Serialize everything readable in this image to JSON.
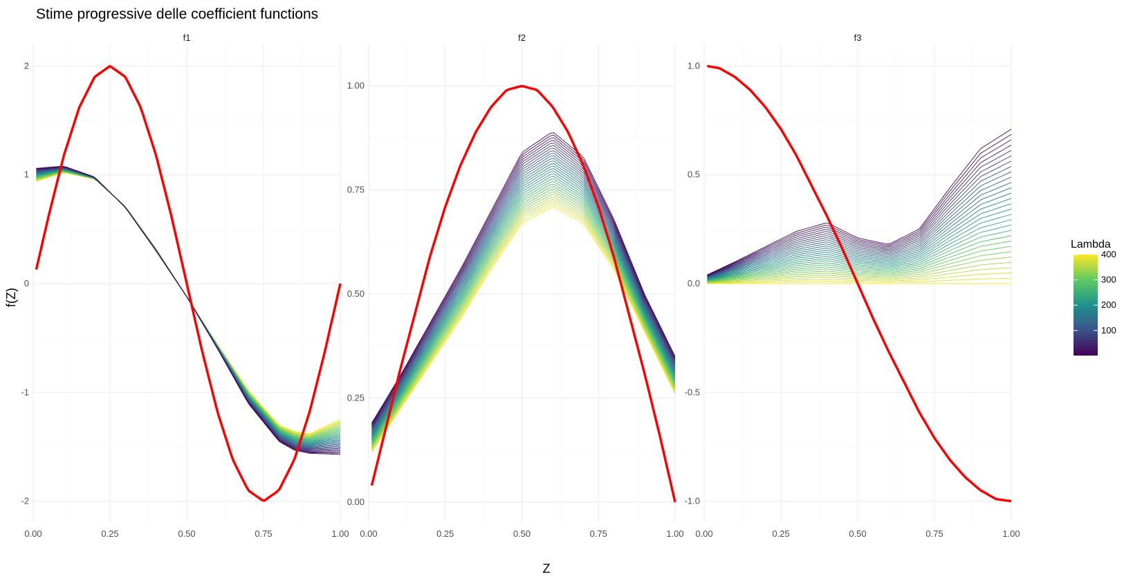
{
  "chart_data": {
    "type": "line",
    "title": "Stime progressive delle coefficient functions",
    "xlabel": "Z",
    "ylabel": "f(Z)",
    "legend": {
      "title": "Lambda",
      "ticks": [
        100,
        200,
        300,
        400
      ],
      "range": [
        1,
        400
      ],
      "position": "right",
      "palette": "viridis"
    },
    "grid": true,
    "true_curve_color": "#ff0000",
    "panels": [
      {
        "name": "f1",
        "xlim": [
          0,
          1
        ],
        "ylim": [
          -2.2,
          2.2
        ],
        "xticks": [
          "0.00",
          "0.25",
          "0.50",
          "0.75",
          "1.00"
        ],
        "yticks": [
          {
            "v": -2,
            "l": "-2"
          },
          {
            "v": -1,
            "l": "-1"
          },
          {
            "v": 0,
            "l": "0"
          },
          {
            "v": 1,
            "l": "1"
          },
          {
            "v": 2,
            "l": "2"
          }
        ],
        "true_curve": {
          "x": [
            0.01,
            0.05,
            0.1,
            0.15,
            0.2,
            0.25,
            0.3,
            0.35,
            0.4,
            0.45,
            0.5,
            0.55,
            0.6,
            0.65,
            0.7,
            0.75,
            0.8,
            0.85,
            0.9,
            0.95,
            1.0
          ],
          "y": [
            0.13,
            0.62,
            1.18,
            1.62,
            1.9,
            2.0,
            1.9,
            1.62,
            1.18,
            0.62,
            0.0,
            -0.62,
            -1.18,
            -1.62,
            -1.9,
            -2.0,
            -1.9,
            -1.62,
            -1.18,
            -0.62,
            0.0
          ]
        },
        "estimates": {
          "x": [
            0.01,
            0.1,
            0.2,
            0.3,
            0.4,
            0.5,
            0.6,
            0.7,
            0.8,
            0.85,
            0.9,
            1.0
          ],
          "low_lambda": [
            1.06,
            1.08,
            0.98,
            0.7,
            0.3,
            -0.12,
            -0.6,
            -1.1,
            -1.45,
            -1.53,
            -1.56,
            -1.57
          ],
          "high_lambda": [
            0.94,
            1.02,
            0.96,
            0.71,
            0.32,
            -0.12,
            -0.56,
            -0.98,
            -1.3,
            -1.36,
            -1.38,
            -1.25
          ]
        }
      },
      {
        "name": "f2",
        "xlim": [
          0,
          1
        ],
        "ylim": [
          -0.05,
          1.1
        ],
        "xticks": [
          "0.00",
          "0.25",
          "0.50",
          "0.75",
          "1.00"
        ],
        "yticks": [
          {
            "v": 0,
            "l": "0.00"
          },
          {
            "v": 0.25,
            "l": "0.25"
          },
          {
            "v": 0.5,
            "l": "0.50"
          },
          {
            "v": 0.75,
            "l": "0.75"
          },
          {
            "v": 1.0,
            "l": "1.00"
          }
        ],
        "true_curve": {
          "x": [
            0.01,
            0.05,
            0.1,
            0.15,
            0.2,
            0.25,
            0.3,
            0.35,
            0.4,
            0.45,
            0.5,
            0.55,
            0.6,
            0.65,
            0.7,
            0.75,
            0.8,
            0.85,
            0.9,
            0.95,
            1.0
          ],
          "y": [
            0.04,
            0.16,
            0.31,
            0.45,
            0.59,
            0.71,
            0.81,
            0.89,
            0.95,
            0.99,
            1.0,
            0.99,
            0.95,
            0.89,
            0.81,
            0.71,
            0.59,
            0.45,
            0.31,
            0.16,
            0.0
          ]
        },
        "estimates": {
          "x": [
            0.01,
            0.1,
            0.2,
            0.3,
            0.4,
            0.5,
            0.6,
            0.7,
            0.8,
            0.9,
            1.0
          ],
          "low_lambda": [
            0.19,
            0.3,
            0.43,
            0.56,
            0.7,
            0.84,
            0.89,
            0.83,
            0.68,
            0.5,
            0.35
          ],
          "high_lambda": [
            0.12,
            0.22,
            0.33,
            0.44,
            0.56,
            0.67,
            0.71,
            0.67,
            0.56,
            0.41,
            0.26
          ]
        }
      },
      {
        "name": "f3",
        "xlim": [
          0,
          1
        ],
        "ylim": [
          -1.1,
          1.1
        ],
        "xticks": [
          "0.00",
          "0.25",
          "0.50",
          "0.75",
          "1.00"
        ],
        "yticks": [
          {
            "v": -1,
            "l": "-1.0"
          },
          {
            "v": -0.5,
            "l": "-0.5"
          },
          {
            "v": 0,
            "l": "0.0"
          },
          {
            "v": 0.5,
            "l": "0.5"
          },
          {
            "v": 1.0,
            "l": "1.0"
          }
        ],
        "true_curve": {
          "x": [
            0.01,
            0.05,
            0.1,
            0.15,
            0.2,
            0.25,
            0.3,
            0.35,
            0.4,
            0.45,
            0.5,
            0.55,
            0.6,
            0.65,
            0.7,
            0.75,
            0.8,
            0.85,
            0.9,
            0.95,
            1.0
          ],
          "y": [
            1.0,
            0.99,
            0.95,
            0.89,
            0.81,
            0.71,
            0.59,
            0.45,
            0.31,
            0.16,
            0.0,
            -0.16,
            -0.31,
            -0.45,
            -0.59,
            -0.71,
            -0.81,
            -0.89,
            -0.95,
            -0.99,
            -1.0
          ]
        },
        "estimates": {
          "x": [
            0.01,
            0.1,
            0.2,
            0.3,
            0.4,
            0.5,
            0.6,
            0.7,
            0.8,
            0.9,
            1.0
          ],
          "low_lambda": [
            0.04,
            0.1,
            0.17,
            0.24,
            0.28,
            0.21,
            0.18,
            0.25,
            0.44,
            0.62,
            0.71
          ],
          "high_lambda": [
            0.0,
            0.0,
            0.0,
            0.0,
            0.0,
            0.0,
            0.0,
            0.0,
            0.0,
            0.0,
            0.0
          ]
        }
      }
    ]
  }
}
